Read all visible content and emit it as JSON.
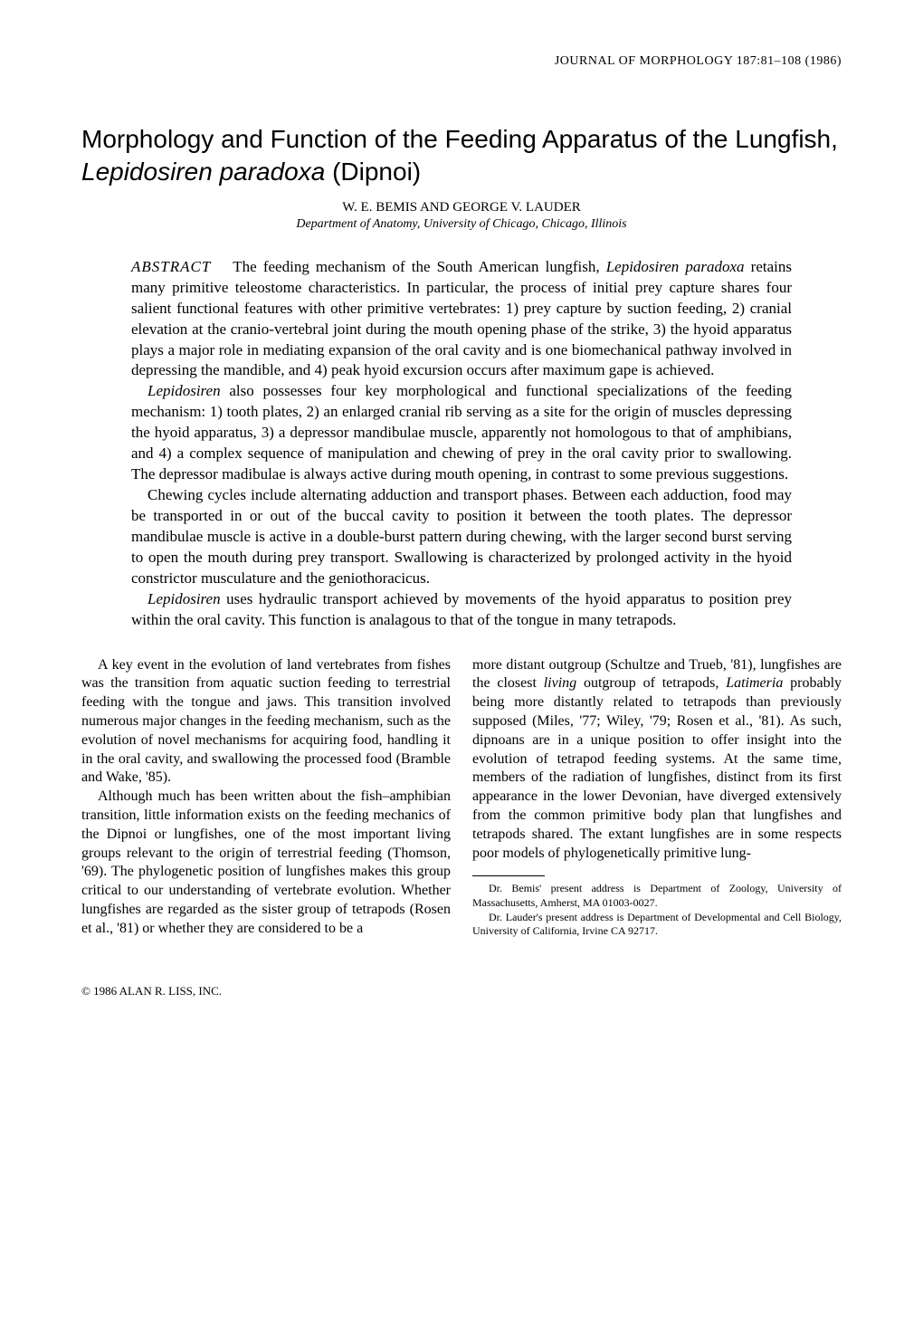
{
  "journal_header": "JOURNAL OF MORPHOLOGY 187:81–108 (1986)",
  "title_part1": "Morphology and Function of the Feeding Apparatus of the Lungfish, ",
  "title_italic": "Lepidosiren paradoxa",
  "title_part2": " (Dipnoi)",
  "authors_line": "W. E. BEMIS AND GEORGE V. LAUDER",
  "affiliation": "Department of Anatomy, University of Chicago, Chicago, Illinois",
  "abstract_label": "ABSTRACT",
  "abstract_p1_a": "The feeding mechanism of the South American lungfish, ",
  "abstract_p1_italic1": "Lepidosiren paradoxa",
  "abstract_p1_b": " retains many primitive teleostome characteristics. In particular, the process of initial prey capture shares four salient functional features with other primitive vertebrates: 1) prey capture by suction feeding, 2) cranial elevation at the cranio-vertebral joint during the mouth opening phase of the strike, 3) the hyoid apparatus plays a major role in mediating expansion of the oral cavity and is one biomechanical pathway involved in depressing the mandible, and 4) peak hyoid excursion occurs after maximum gape is achieved.",
  "abstract_p2_italic1": "Lepidosiren",
  "abstract_p2_a": " also possesses four key morphological and functional specializations of the feeding mechanism: 1) tooth plates, 2) an enlarged cranial rib serving as a site for the origin of muscles depressing the hyoid apparatus, 3) a depressor mandibulae muscle, apparently not homologous to that of amphibians, and 4) a complex sequence of manipulation and chewing of prey in the oral cavity prior to swallowing. The depressor madibulae is always active during mouth opening, in contrast to some previous suggestions.",
  "abstract_p3": "Chewing cycles include alternating adduction and transport phases. Between each adduction, food may be transported in or out of the buccal cavity to position it between the tooth plates. The depressor mandibulae muscle is active in a double-burst pattern during chewing, with the larger second burst serving to open the mouth during prey transport. Swallowing is characterized by prolonged activity in the hyoid constrictor musculature and the geniothoracicus.",
  "abstract_p4_italic1": "Lepidosiren",
  "abstract_p4_a": " uses hydraulic transport achieved by movements of the hyoid apparatus to position prey within the oral cavity. This function is analagous to that of the tongue in many tetrapods.",
  "body_col1_p1": "A key event in the evolution of land vertebrates from fishes was the transition from aquatic suction feeding to terrestrial feeding with the tongue and jaws. This transition involved numerous major changes in the feeding mechanism, such as the evolution of novel mechanisms for acquiring food, handling it in the oral cavity, and swallowing the processed food (Bramble and Wake, '85).",
  "body_col1_p2": "Although much has been written about the fish–amphibian transition, little information exists on the feeding mechanics of the Dipnoi or lungfishes, one of the most important living groups relevant to the origin of terrestrial feeding (Thomson, '69). The phylogenetic position of lungfishes makes this group critical to our understanding of vertebrate evolution. Whether lungfishes are regarded as the sister group of tetrapods (Rosen et al., '81) or whether they are considered to be a",
  "body_col2_p1_a": "more distant outgroup (Schultze and Trueb, '81), lungfishes are the closest ",
  "body_col2_p1_italic1": "living",
  "body_col2_p1_b": " outgroup of tetrapods, ",
  "body_col2_p1_italic2": "Latimeria",
  "body_col2_p1_c": " probably being more distantly related to tetrapods than previously supposed (Miles, '77; Wiley, '79; Rosen et al., '81). As such, dipnoans are in a unique position to offer insight into the evolution of tetrapod feeding systems. At the same time, members of the radiation of lungfishes, distinct from its first appearance in the lower Devonian, have diverged extensively from the common primitive body plan that lungfishes and tetrapods shared. The extant lungfishes are in some respects poor models of phylogenetically primitive lung-",
  "footnote1": "Dr. Bemis' present address is Department of Zoology, University of Massachusetts, Amherst, MA 01003-0027.",
  "footnote2": "Dr. Lauder's present address is Department of Developmental and Cell Biology, University of California, Irvine CA 92717.",
  "copyright": "© 1986 ALAN R. LISS, INC."
}
